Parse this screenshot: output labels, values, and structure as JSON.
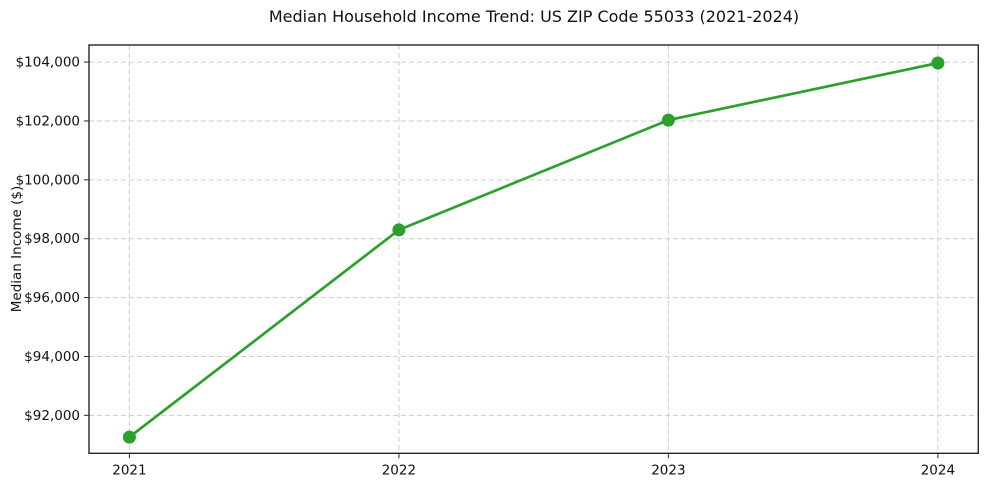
{
  "chart_data": {
    "type": "line",
    "title": "Median Household Income Trend: US ZIP Code 55033 (2021-2024)",
    "xlabel": "",
    "ylabel": "Median Income ($)",
    "categories": [
      "2021",
      "2022",
      "2023",
      "2024"
    ],
    "xticks": [
      {
        "value": 2021,
        "label": "2021"
      },
      {
        "value": 2022,
        "label": "2022"
      },
      {
        "value": 2023,
        "label": "2023"
      },
      {
        "value": 2024,
        "label": "2024"
      }
    ],
    "yticks": [
      {
        "value": 92000,
        "label": "$92,000"
      },
      {
        "value": 94000,
        "label": "$94,000"
      },
      {
        "value": 96000,
        "label": "$96,000"
      },
      {
        "value": 98000,
        "label": "$98,000"
      },
      {
        "value": 100000,
        "label": "$100,000"
      },
      {
        "value": 102000,
        "label": "$102,000"
      },
      {
        "value": 104000,
        "label": "$104,000"
      }
    ],
    "series": [
      {
        "name": "Median Household Income",
        "x": [
          2021,
          2022,
          2023,
          2024
        ],
        "values": [
          91260,
          98300,
          102030,
          103970
        ],
        "color": "#2ca02c",
        "marker": "circle"
      }
    ],
    "xlim": [
      2020.85,
      2024.15
    ],
    "ylim": [
      90710,
      104580
    ],
    "grid": {
      "show": true,
      "style": "dashed",
      "color": "#cccccc"
    },
    "legend": {
      "show": false,
      "position": "none"
    },
    "colors": {
      "line": "#2ca02c",
      "grid": "#cccccc",
      "axis": "#262626",
      "text": "#111111",
      "background": "#ffffff"
    }
  }
}
